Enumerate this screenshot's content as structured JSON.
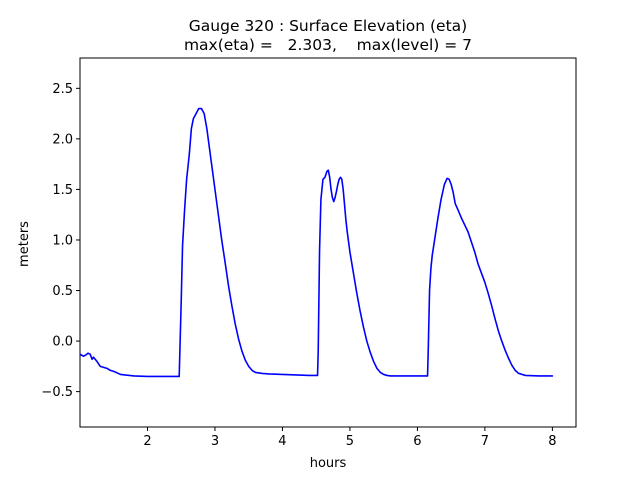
{
  "chart_data": {
    "type": "line",
    "title": "Gauge 320 : Surface Elevation (eta)",
    "subtitle": "max(eta) =   2.303,    max(level) = 7",
    "xlabel": "hours",
    "ylabel": "meters",
    "xlim": [
      1.0,
      8.35
    ],
    "ylim": [
      -0.85,
      2.8
    ],
    "xticks": [
      2,
      3,
      4,
      5,
      6,
      7,
      8
    ],
    "yticks": [
      -0.5,
      0.0,
      0.5,
      1.0,
      1.5,
      2.0,
      2.5
    ],
    "xtick_labels": [
      "2",
      "3",
      "4",
      "5",
      "6",
      "7",
      "8"
    ],
    "ytick_labels": [
      "−0.5",
      "0.0",
      "0.5",
      "1.0",
      "1.5",
      "2.0",
      "2.5"
    ],
    "grid": false,
    "legend": "none",
    "series": [
      {
        "color": "#0000ff",
        "x": [
          1.0,
          1.05,
          1.08,
          1.12,
          1.15,
          1.18,
          1.2,
          1.25,
          1.3,
          1.35,
          1.4,
          1.45,
          1.5,
          1.6,
          1.8,
          2.0,
          2.2,
          2.4,
          2.47,
          2.48,
          2.5,
          2.52,
          2.55,
          2.58,
          2.62,
          2.65,
          2.68,
          2.72,
          2.76,
          2.8,
          2.84,
          2.88,
          2.92,
          2.96,
          3.0,
          3.05,
          3.1,
          3.15,
          3.2,
          3.25,
          3.3,
          3.35,
          3.4,
          3.45,
          3.5,
          3.55,
          3.6,
          3.7,
          3.8,
          4.0,
          4.2,
          4.4,
          4.52,
          4.53,
          4.55,
          4.57,
          4.6,
          4.63,
          4.66,
          4.68,
          4.7,
          4.72,
          4.74,
          4.76,
          4.78,
          4.8,
          4.82,
          4.84,
          4.86,
          4.88,
          4.9,
          4.92,
          4.94,
          4.96,
          4.98,
          5.0,
          5.05,
          5.1,
          5.15,
          5.2,
          5.25,
          5.3,
          5.35,
          5.4,
          5.45,
          5.5,
          5.55,
          5.6,
          5.7,
          5.8,
          6.0,
          6.1,
          6.15,
          6.16,
          6.18,
          6.2,
          6.22,
          6.25,
          6.3,
          6.35,
          6.4,
          6.44,
          6.47,
          6.5,
          6.53,
          6.56,
          6.6,
          6.65,
          6.7,
          6.75,
          6.8,
          6.85,
          6.9,
          6.95,
          7.0,
          7.05,
          7.1,
          7.15,
          7.2,
          7.25,
          7.3,
          7.35,
          7.4,
          7.45,
          7.5,
          7.6,
          7.8,
          8.0
        ],
        "y": [
          -0.13,
          -0.15,
          -0.14,
          -0.12,
          -0.13,
          -0.18,
          -0.16,
          -0.2,
          -0.25,
          -0.26,
          -0.27,
          -0.29,
          -0.3,
          -0.33,
          -0.345,
          -0.35,
          -0.35,
          -0.35,
          -0.35,
          -0.1,
          0.4,
          0.95,
          1.3,
          1.6,
          1.85,
          2.1,
          2.2,
          2.25,
          2.3,
          2.3,
          2.25,
          2.1,
          1.9,
          1.7,
          1.5,
          1.25,
          1.0,
          0.78,
          0.55,
          0.35,
          0.17,
          0.02,
          -0.1,
          -0.19,
          -0.25,
          -0.29,
          -0.31,
          -0.32,
          -0.325,
          -0.33,
          -0.335,
          -0.34,
          -0.34,
          -0.1,
          0.9,
          1.4,
          1.6,
          1.62,
          1.68,
          1.69,
          1.62,
          1.5,
          1.42,
          1.38,
          1.42,
          1.48,
          1.55,
          1.6,
          1.62,
          1.6,
          1.5,
          1.35,
          1.2,
          1.08,
          0.98,
          0.88,
          0.68,
          0.48,
          0.3,
          0.14,
          0.0,
          -0.11,
          -0.2,
          -0.27,
          -0.31,
          -0.33,
          -0.34,
          -0.345,
          -0.345,
          -0.345,
          -0.345,
          -0.345,
          -0.345,
          -0.1,
          0.5,
          0.72,
          0.85,
          0.98,
          1.2,
          1.4,
          1.55,
          1.61,
          1.6,
          1.55,
          1.47,
          1.36,
          1.3,
          1.22,
          1.15,
          1.08,
          0.98,
          0.88,
          0.76,
          0.67,
          0.58,
          0.47,
          0.35,
          0.22,
          0.1,
          0.0,
          -0.09,
          -0.17,
          -0.24,
          -0.29,
          -0.32,
          -0.34,
          -0.345,
          -0.345
        ]
      }
    ]
  }
}
